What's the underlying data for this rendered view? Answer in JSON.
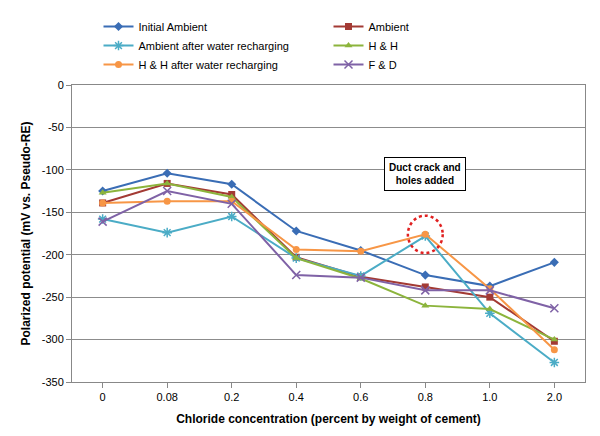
{
  "chart_data": {
    "type": "line",
    "x_label": "Chloride concentration (percent by weight of cement)",
    "y_label": "Polarized potential (mV vs. Pseudo-RE)",
    "categories": [
      "0",
      "0.08",
      "0.2",
      "0.4",
      "0.6",
      "0.8",
      "1.0",
      "2.0"
    ],
    "series": [
      {
        "name": "Initial Ambient",
        "color": "#3A6DB5",
        "marker": "diamond",
        "values": [
          -125,
          -104,
          -117,
          -172,
          -195,
          -224,
          -237,
          -209
        ]
      },
      {
        "name": "Ambient",
        "color": "#A33A34",
        "marker": "square",
        "values": [
          -139,
          -116,
          -129,
          -203,
          -226,
          -238,
          -250,
          -302
        ]
      },
      {
        "name": "Ambient after water recharging",
        "color": "#4BACC6",
        "marker": "asterisk",
        "values": [
          -158,
          -174,
          -155,
          -204,
          -225,
          -178,
          -269,
          -327
        ]
      },
      {
        "name": "H & H",
        "color": "#8CB43C",
        "marker": "triangle",
        "values": [
          -127,
          -116,
          -132,
          -204,
          -228,
          -260,
          -264,
          -300
        ]
      },
      {
        "name": "H & H after water recharging",
        "color": "#F79646",
        "marker": "circle",
        "values": [
          -139,
          -137,
          -137,
          -194,
          -196,
          -176,
          -240,
          -312
        ]
      },
      {
        "name": "F & D",
        "color": "#7F62A6",
        "marker": "x",
        "values": [
          -161,
          -125,
          -140,
          -224,
          -227,
          -242,
          -242,
          -263
        ]
      }
    ],
    "ylim": [
      -350,
      0
    ],
    "yticks": [
      -350,
      -300,
      -250,
      -200,
      -150,
      -100,
      -50,
      0
    ],
    "grid": true,
    "legend": "top",
    "annotations": [
      {
        "text": "Duct crack and\nholes added",
        "category": "0.8"
      }
    ]
  }
}
